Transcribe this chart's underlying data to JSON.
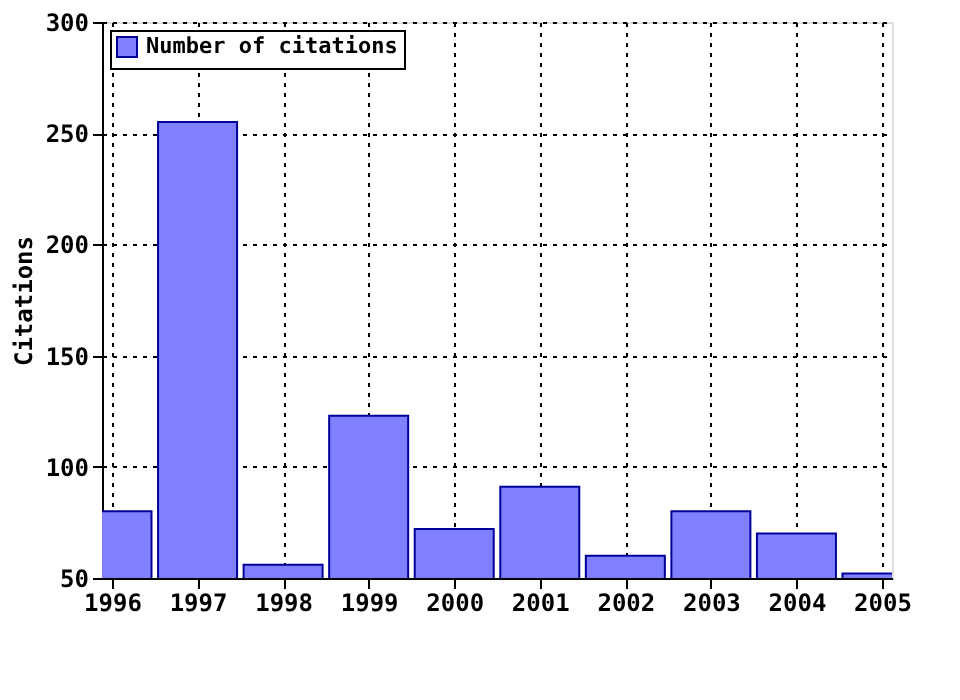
{
  "chart_data": {
    "type": "bar",
    "ylabel": "Citations",
    "x": [
      1996,
      1997,
      1998,
      1999,
      2000,
      2001,
      2002,
      2003,
      2004,
      2005
    ],
    "series": [
      {
        "name": "Number of citations",
        "color": "#8080ff",
        "values": [
          80,
          255,
          56,
          123,
          72,
          91,
          60,
          80,
          70,
          52
        ]
      }
    ],
    "xlim": [
      1996,
      2005
    ],
    "xticks": [
      1996,
      1997,
      1998,
      1999,
      2000,
      2001,
      2002,
      2003,
      2004,
      2005
    ],
    "ylim": [
      50,
      300
    ],
    "yticks": [
      50,
      100,
      150,
      200,
      250,
      300
    ],
    "grid": true,
    "legend": "top left"
  }
}
